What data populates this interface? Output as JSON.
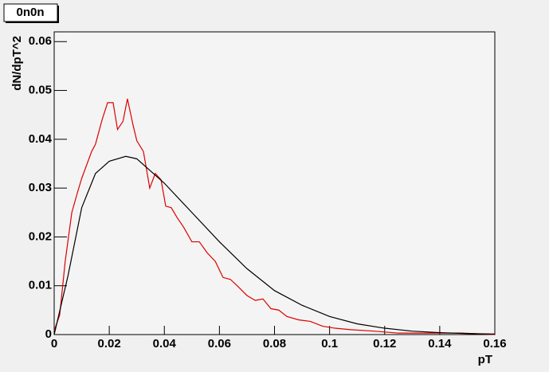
{
  "chart_data": {
    "type": "line",
    "title": "0n0n",
    "x_label": "pT",
    "y_label": "dN/dpT^2",
    "xlim": [
      0,
      0.16
    ],
    "ylim": [
      0,
      0.062
    ],
    "xticks": [
      0,
      0.02,
      0.04,
      0.06,
      0.08,
      0.1,
      0.12,
      0.14,
      0.16
    ],
    "yticks": [
      0,
      0.01,
      0.02,
      0.03,
      0.04,
      0.05,
      0.06
    ],
    "series": [
      {
        "color": "#dd0000",
        "x": [
          0,
          0.002,
          0.004,
          0.0064,
          0.0084,
          0.01,
          0.0136,
          0.015,
          0.0174,
          0.0194,
          0.0214,
          0.023,
          0.025,
          0.0266,
          0.0286,
          0.03,
          0.0324,
          0.0347,
          0.0367,
          0.0388,
          0.0405,
          0.0425,
          0.0446,
          0.047,
          0.05,
          0.0527,
          0.0556,
          0.0585,
          0.0613,
          0.064,
          0.067,
          0.07,
          0.073,
          0.0758,
          0.0787,
          0.0816,
          0.0845,
          0.0889,
          0.093,
          0.0975,
          0.102,
          0.1077,
          0.116,
          0.125,
          0.1366,
          0.148,
          0.16
        ],
        "values": [
          0.0008,
          0.004,
          0.015,
          0.025,
          0.029,
          0.032,
          0.0375,
          0.039,
          0.044,
          0.0475,
          0.0475,
          0.042,
          0.0437,
          0.0483,
          0.043,
          0.0397,
          0.0375,
          0.03,
          0.033,
          0.0317,
          0.0263,
          0.026,
          0.024,
          0.022,
          0.019,
          0.019,
          0.0167,
          0.015,
          0.0117,
          0.0113,
          0.0097,
          0.008,
          0.007,
          0.0073,
          0.0053,
          0.005,
          0.0037,
          0.003,
          0.0027,
          0.0017,
          0.0013,
          0.001,
          0.0007,
          0.0003,
          0.0003,
          0.0003,
          0
        ]
      },
      {
        "color": "#000000",
        "x": [
          0,
          0.005,
          0.01,
          0.015,
          0.02,
          0.026,
          0.03,
          0.035,
          0.04,
          0.05,
          0.06,
          0.07,
          0.08,
          0.09,
          0.1,
          0.11,
          0.12,
          0.13,
          0.14,
          0.15,
          0.16
        ],
        "values": [
          0,
          0.012,
          0.026,
          0.033,
          0.0355,
          0.0365,
          0.036,
          0.0335,
          0.031,
          0.025,
          0.019,
          0.0135,
          0.009,
          0.006,
          0.0037,
          0.0022,
          0.0013,
          0.0007,
          0.0004,
          0.0002,
          0.0001
        ]
      }
    ]
  }
}
